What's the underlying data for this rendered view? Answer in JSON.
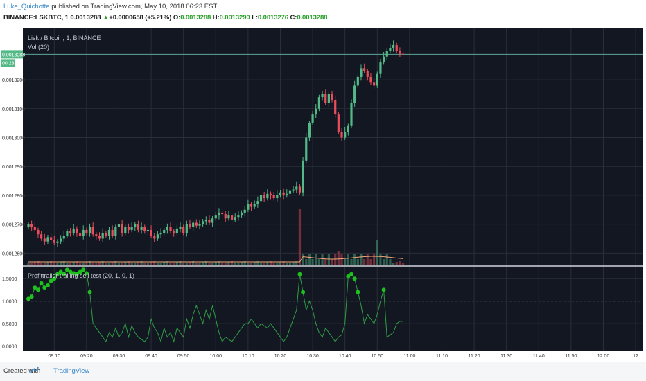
{
  "header": {
    "author": "Luke_Quichotte",
    "published_text": "published on TradingView.com, May 10, 2018 06:23 EST",
    "symbol": "BINANCE:LSKBTC, 1",
    "last": "0.0013288",
    "change_arrow": "▲",
    "change": "+0.0000658 (+5.21%)",
    "o_label": "O:",
    "o": "0.0013288",
    "h_label": "H:",
    "h": "0.0013290",
    "l_label": "L:",
    "l": "0.0013276",
    "c_label": "C:",
    "c": "0.0013288"
  },
  "main_pane": {
    "title": "Lisk / Bitcoin, 1, BINANCE",
    "vol_label": "Vol (20)",
    "price_tag": "0.0013288",
    "countdown_tag": "00:23"
  },
  "indicator_pane": {
    "title": "Profittrailer trailing sell test (20, 1, 0, 1)"
  },
  "footer": {
    "created_with": "Created with",
    "brand": "TradingView"
  },
  "colors": {
    "background": "#131722",
    "grid": "#2a2e39",
    "up": "#53b987",
    "down": "#eb4d5c",
    "osc_line": "#2f9e44",
    "osc_marker": "#1fbf1f",
    "vol_ma": "#f5a97a",
    "axis_text": "#c9ccd4"
  },
  "chart_data": [
    {
      "type": "candlestick",
      "ylim": [
        0.001256,
        0.001338
      ],
      "y_ticks": [
        "0.0012600",
        "0.0012700",
        "0.0012800",
        "0.0012900",
        "0.0013000",
        "0.0013100",
        "0.0013200"
      ],
      "x_ticks": [
        "09:10",
        "09:20",
        "09:30",
        "09:40",
        "09:50",
        "10:00",
        "10:10",
        "10:20",
        "10:30",
        "10:40",
        "10:50",
        "11:00",
        "11:10",
        "11:20",
        "11:30",
        "11:40",
        "11:50",
        "12:00",
        "12"
      ],
      "x_start": "09:02",
      "interval_minutes": 1,
      "closes": [
        0.00127,
        0.001269,
        0.001268,
        0.0012665,
        0.001265,
        0.001264,
        0.0012655,
        0.0012645,
        0.0012635,
        0.001264,
        0.001265,
        0.001266,
        0.0012675,
        0.001267,
        0.0012685,
        0.001267,
        0.001266,
        0.001268,
        0.001267,
        0.001269,
        0.0012665,
        0.001266,
        0.001265,
        0.001267,
        0.001266,
        0.001268,
        0.001266,
        0.001269,
        0.00127,
        0.001267,
        0.001269,
        0.001268,
        0.001269,
        0.00127,
        0.001268,
        0.001269,
        0.0012675,
        0.001268,
        0.001266,
        0.001265,
        0.0012665,
        0.001267,
        0.001268,
        0.001269,
        0.0012675,
        0.001267,
        0.0012685,
        0.001269,
        0.001267,
        0.00127,
        0.001269,
        0.0012705,
        0.0012695,
        0.00127,
        0.001271,
        0.0012715,
        0.0012705,
        0.001272,
        0.001273,
        0.001274,
        0.0012735,
        0.001272,
        0.001273,
        0.0012715,
        0.0012725,
        0.001273,
        0.001274,
        0.001275,
        0.001277,
        0.001276,
        0.001277,
        0.001278,
        0.00128,
        0.001279,
        0.0012805,
        0.00128,
        0.001279,
        0.00128,
        0.001281,
        0.00128,
        0.0012805,
        0.0012815,
        0.001282,
        0.001283,
        0.001281,
        0.001292,
        0.0013,
        0.001305,
        0.001308,
        0.00131,
        0.001314,
        0.001315,
        0.001312,
        0.001315,
        0.001313,
        0.001308,
        0.001302,
        0.0013,
        0.001302,
        0.001304,
        0.001312,
        0.001318,
        0.001321,
        0.001324,
        0.001323,
        0.001321,
        0.001319,
        0.001318,
        0.001322,
        0.001326,
        0.001328,
        0.00133,
        0.001331,
        0.001332,
        0.00133,
        0.001329,
        0.0013288
      ],
      "series": [
        {
          "name": "Vol (20)",
          "type": "volume"
        }
      ]
    },
    {
      "type": "line",
      "ylim": [
        -0.1,
        1.75
      ],
      "y_ticks": [
        "1.5000",
        "1.0000",
        "0.5000",
        "0.0000"
      ],
      "reference_level": 1.0,
      "values": [
        1.05,
        1.1,
        1.3,
        1.25,
        1.4,
        1.3,
        1.35,
        1.45,
        1.5,
        1.6,
        1.65,
        1.6,
        1.7,
        1.65,
        1.62,
        1.6,
        1.65,
        1.7,
        1.62,
        1.2,
        0.5,
        0.4,
        0.3,
        0.2,
        0.1,
        0.3,
        0.2,
        0.4,
        0.2,
        0.3,
        0.5,
        0.2,
        0.45,
        0.3,
        0.2,
        0.15,
        0.1,
        0.2,
        0.6,
        0.4,
        0.3,
        0.1,
        0.4,
        0.2,
        0.3,
        0.1,
        0.4,
        0.3,
        0.2,
        0.6,
        0.4,
        0.7,
        0.9,
        0.7,
        0.5,
        0.8,
        0.6,
        0.9,
        0.6,
        0.3,
        0.1,
        0.2,
        0.15,
        0.1,
        0.2,
        0.3,
        0.4,
        0.5,
        0.5,
        0.6,
        0.5,
        0.4,
        0.5,
        0.45,
        0.4,
        0.5,
        0.4,
        0.3,
        0.2,
        0.1,
        0.2,
        0.4,
        0.6,
        0.8,
        1.6,
        1.2,
        0.8,
        1.0,
        0.8,
        0.5,
        0.3,
        0.2,
        0.4,
        0.3,
        0.2,
        0.1,
        0.2,
        0.25,
        0.5,
        1.55,
        1.6,
        1.5,
        1.2,
        0.9,
        0.5,
        0.7,
        0.6,
        0.5,
        0.7,
        1.0,
        1.25,
        0.2,
        0.25,
        0.3,
        0.5,
        0.55,
        0.55
      ],
      "markers_above": 1.0
    }
  ]
}
